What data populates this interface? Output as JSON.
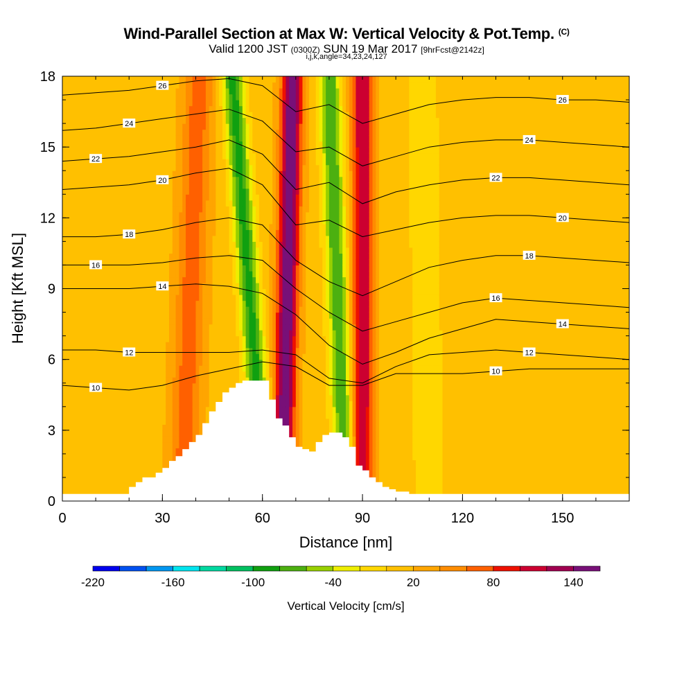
{
  "chart_data": {
    "type": "heatmap",
    "title": "Wind-Parallel Section at Max W: Vertical Velocity & Pot.Temp.",
    "title_mark": "(C)",
    "subtitle_main": "Valid 1200 JST",
    "subtitle_utc": "(0300Z)",
    "subtitle_date": "SUN 19 Mar 2017",
    "subtitle_fcst": "[9hrFcst@2142z]",
    "params": "i,j,k,angle=34,23,24,127",
    "xlabel": "Distance [nm]",
    "ylabel": "Height [Kft MSL]",
    "xlim": [
      0,
      170
    ],
    "ylim": [
      0,
      18
    ],
    "x_ticks": [
      "0",
      "30",
      "60",
      "90",
      "120",
      "150"
    ],
    "y_ticks": [
      "0",
      "3",
      "6",
      "9",
      "12",
      "15",
      "18"
    ],
    "colorbar": {
      "label": "Vertical Velocity [cm/s]",
      "tick_labels": [
        "-220",
        "-160",
        "-100",
        "-40",
        "20",
        "80",
        "140"
      ],
      "levels": [
        -220,
        -200,
        -180,
        -160,
        -140,
        -120,
        -100,
        -80,
        -60,
        -40,
        -20,
        0,
        20,
        40,
        60,
        80,
        100,
        120,
        140,
        160
      ],
      "colors": [
        "#0000ee",
        "#0050f0",
        "#0096f0",
        "#00e4ee",
        "#00d8a0",
        "#00c060",
        "#10a010",
        "#4cb010",
        "#98d000",
        "#eeee00",
        "#ffd700",
        "#ffc000",
        "#ffa500",
        "#ff8c00",
        "#ff6000",
        "#ee1000",
        "#cc0030",
        "#a00050",
        "#781078"
      ]
    },
    "theta_contours": [
      {
        "label": "10",
        "x": [
          0,
          10,
          20,
          30,
          40,
          50,
          60,
          70,
          80,
          90,
          100,
          110,
          120,
          130,
          140,
          150,
          160,
          170
        ],
        "y": [
          4.9,
          4.8,
          4.7,
          4.9,
          5.3,
          5.6,
          5.9,
          5.7,
          4.9,
          4.9,
          5.4,
          5.4,
          5.4,
          5.5,
          5.6,
          5.6,
          5.6,
          5.6
        ]
      },
      {
        "label": "12",
        "x": [
          0,
          10,
          20,
          30,
          40,
          50,
          60,
          70,
          80,
          90,
          100,
          110,
          120,
          130,
          140,
          150,
          160,
          170
        ],
        "y": [
          6.4,
          6.4,
          6.3,
          6.3,
          6.3,
          6.3,
          6.4,
          6.2,
          5.2,
          5.0,
          5.7,
          6.2,
          6.3,
          6.4,
          6.3,
          6.2,
          6.1,
          6.0
        ]
      },
      {
        "label": "14",
        "x": [
          0,
          10,
          20,
          30,
          40,
          50,
          60,
          70,
          80,
          90,
          100,
          110,
          120,
          130,
          140,
          150,
          160,
          170
        ],
        "y": [
          9.0,
          9.0,
          9.0,
          9.1,
          9.2,
          9.1,
          8.8,
          7.9,
          6.6,
          5.8,
          6.3,
          6.9,
          7.3,
          7.7,
          7.6,
          7.5,
          7.4,
          7.3
        ]
      },
      {
        "label": "16",
        "x": [
          0,
          10,
          20,
          30,
          40,
          50,
          60,
          70,
          80,
          90,
          100,
          110,
          120,
          130,
          140,
          150,
          160,
          170
        ],
        "y": [
          10.0,
          10.0,
          10.0,
          10.1,
          10.3,
          10.4,
          10.2,
          9.0,
          8.0,
          7.2,
          7.6,
          8.0,
          8.4,
          8.6,
          8.5,
          8.4,
          8.3,
          8.2
        ]
      },
      {
        "label": "18",
        "x": [
          0,
          10,
          20,
          30,
          40,
          50,
          60,
          70,
          80,
          90,
          100,
          110,
          120,
          130,
          140,
          150,
          160,
          170
        ],
        "y": [
          11.2,
          11.2,
          11.3,
          11.5,
          11.8,
          12.0,
          11.7,
          10.2,
          9.3,
          8.7,
          9.3,
          9.9,
          10.2,
          10.4,
          10.4,
          10.3,
          10.2,
          10.1
        ]
      },
      {
        "label": "20",
        "x": [
          0,
          10,
          20,
          30,
          40,
          50,
          60,
          70,
          80,
          90,
          100,
          110,
          120,
          130,
          140,
          150,
          160,
          170
        ],
        "y": [
          13.2,
          13.3,
          13.4,
          13.6,
          13.9,
          14.1,
          13.4,
          11.7,
          11.9,
          11.2,
          11.5,
          11.8,
          12.0,
          12.1,
          12.1,
          12.0,
          11.9,
          11.8
        ]
      },
      {
        "label": "22",
        "x": [
          0,
          10,
          20,
          30,
          40,
          50,
          60,
          70,
          80,
          90,
          100,
          110,
          120,
          130,
          140,
          150,
          160,
          170
        ],
        "y": [
          14.4,
          14.5,
          14.6,
          14.8,
          15.0,
          15.3,
          14.7,
          13.2,
          13.5,
          12.6,
          13.1,
          13.4,
          13.6,
          13.7,
          13.7,
          13.6,
          13.5,
          13.4
        ]
      },
      {
        "label": "24",
        "x": [
          0,
          10,
          20,
          30,
          40,
          50,
          60,
          70,
          80,
          90,
          100,
          110,
          120,
          130,
          140,
          150,
          160,
          170
        ],
        "y": [
          15.7,
          15.8,
          16.0,
          16.2,
          16.4,
          16.6,
          16.1,
          14.8,
          15.0,
          14.2,
          14.6,
          15.0,
          15.2,
          15.3,
          15.3,
          15.2,
          15.1,
          15.0
        ]
      },
      {
        "label": "26",
        "x": [
          0,
          10,
          20,
          30,
          40,
          50,
          60,
          70,
          80,
          90,
          100,
          110,
          120,
          130,
          140,
          150,
          160,
          170
        ],
        "y": [
          17.2,
          17.3,
          17.4,
          17.6,
          17.8,
          17.9,
          17.6,
          16.5,
          16.8,
          16.0,
          16.4,
          16.8,
          17.0,
          17.1,
          17.1,
          17.0,
          17.0,
          16.9
        ]
      }
    ],
    "terrain": {
      "x": [
        0,
        10,
        19,
        20,
        22,
        24,
        26,
        28,
        30,
        32,
        34,
        36,
        38,
        40,
        42,
        44,
        46,
        48,
        50,
        52,
        54,
        56,
        58,
        60,
        62,
        64,
        66,
        68,
        70,
        72,
        74,
        76,
        78,
        80,
        82,
        84,
        86,
        88,
        90,
        92,
        94,
        96,
        98,
        100,
        104,
        110,
        120,
        170
      ],
      "y": [
        0.3,
        0.3,
        0.3,
        0.6,
        0.8,
        1.0,
        1.0,
        1.2,
        1.4,
        1.7,
        1.9,
        2.2,
        2.5,
        2.8,
        3.3,
        3.8,
        4.2,
        4.6,
        4.8,
        5.0,
        5.1,
        5.1,
        5.1,
        5.1,
        4.3,
        3.5,
        3.2,
        2.7,
        2.3,
        2.2,
        2.1,
        2.5,
        2.8,
        2.9,
        2.9,
        2.7,
        2.3,
        1.5,
        1.3,
        1.0,
        0.8,
        0.6,
        0.5,
        0.4,
        0.3,
        0.3,
        0.3,
        0.3
      ]
    },
    "w_features": [
      {
        "type": "updraft",
        "w": 150,
        "x_at_bottom": 66,
        "x_at_top": 69
      },
      {
        "type": "updraft",
        "w": 110,
        "x_at_bottom": 90,
        "x_at_top": 90
      },
      {
        "type": "downdraft",
        "w": -100,
        "x_at_bottom": 61,
        "x_at_top": 51
      },
      {
        "type": "downdraft",
        "w": -90,
        "x_at_bottom": 85,
        "x_at_top": 80
      },
      {
        "type": "updraft",
        "w": 60,
        "x_at_bottom": 36,
        "x_at_top": 41
      },
      {
        "type": "downdraft",
        "w": -30,
        "x_at_bottom": 110,
        "x_at_top": 108
      }
    ]
  }
}
